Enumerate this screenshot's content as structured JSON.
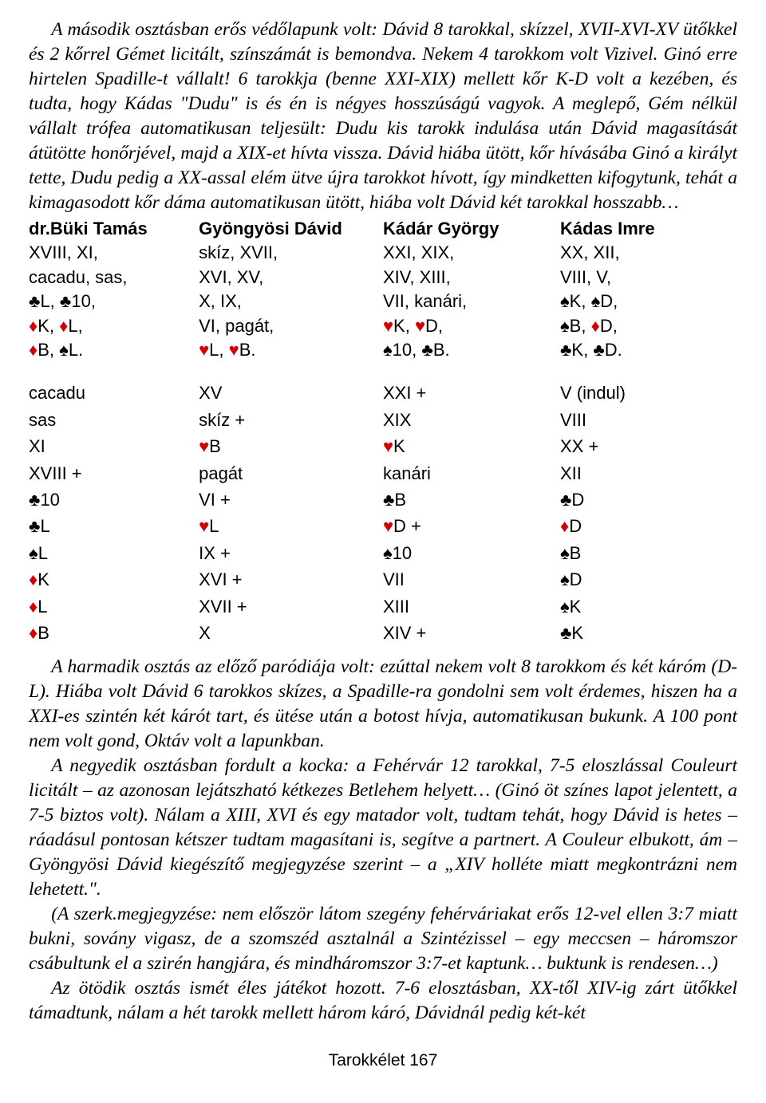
{
  "para1": "A második osztásban erős védőlapunk volt: Dávid 8 tarokkal, skízzel, XVII-XVI-XV ütőkkel és 2 kőrrel Gémet licitált, színszámát is bemondva. Nekem 4 tarokkom volt Vizivel. Ginó erre hirtelen Spadille-t vállalt! 6 tarokkja (benne XXI-XIX) mellett kőr K-D volt a kezében, és tudta, hogy Kádas \"Dudu\" is és én is négyes hosszúságú vagyok. A meglepő, Gém nélkül vállalt trófea automatikusan teljesült: Dudu kis tarokk indulása után Dávid magasítását átütötte honőrjével, majd a XIX-et hívta vissza. Dávid hiába ütött, kőr hívásába Ginó a királyt tette, Dudu pedig a XX-assal elém ütve újra tarokkot hívott, így mindketten kifogytunk, tehát a kimagasodott kőr dáma automatikusan ütött, hiába volt Dávid két tarokkal hosszabb…",
  "players": [
    "dr.Büki Tamás",
    "Gyöngyösi Dávid",
    "Kádár György",
    "Kádas Imre"
  ],
  "hands": [
    [
      "XVIII, XI,",
      "skíz, XVII,",
      "XXI, XIX,",
      "XX, XII,"
    ],
    [
      "cacadu, sas,",
      "XVI, XV,",
      "XIV, XIII,",
      "VIII, V,"
    ]
  ],
  "hands_sym": [
    [
      {
        "pre": "",
        "sym": "♣",
        "red": false,
        "mid": "L, ",
        "sym2": "♣",
        "red2": false,
        "post": "10,"
      },
      {
        "pre": "X, IX,",
        "sym": "",
        "mid": "",
        "sym2": "",
        "post": ""
      },
      {
        "pre": "VII, kanári,",
        "sym": "",
        "mid": "",
        "sym2": "",
        "post": ""
      },
      {
        "pre": "",
        "sym": "♠",
        "red": false,
        "mid": "K, ",
        "sym2": "♠",
        "red2": false,
        "post": "D,"
      }
    ],
    [
      {
        "pre": "",
        "sym": "♦",
        "red": true,
        "mid": "K, ",
        "sym2": "♦",
        "red2": true,
        "post": "L,"
      },
      {
        "pre": "VI, pagát,",
        "sym": "",
        "mid": "",
        "sym2": "",
        "post": ""
      },
      {
        "pre": "",
        "sym": "♥",
        "red": true,
        "mid": "K, ",
        "sym2": "♥",
        "red2": true,
        "post": "D,"
      },
      {
        "pre": "",
        "sym": "♠",
        "red": false,
        "mid": "B, ",
        "sym2": "♦",
        "red2": true,
        "post": "D,"
      }
    ],
    [
      {
        "pre": "",
        "sym": "♦",
        "red": true,
        "mid": "B, ",
        "sym2": "♠",
        "red2": false,
        "post": "L."
      },
      {
        "pre": "",
        "sym": "♥",
        "red": true,
        "mid": "L, ",
        "sym2": "♥",
        "red2": true,
        "post": "B."
      },
      {
        "pre": "",
        "sym": "♠",
        "red": false,
        "mid": "10, ",
        "sym2": "♣",
        "red2": false,
        "post": "B."
      },
      {
        "pre": "",
        "sym": "♣",
        "red": false,
        "mid": "K, ",
        "sym2": "♣",
        "red2": false,
        "post": "D."
      }
    ]
  ],
  "tricks": [
    [
      {
        "t": "cacadu"
      },
      {
        "t": "XV"
      },
      {
        "t": "XXI +"
      },
      {
        "t": "V (indul)"
      }
    ],
    [
      {
        "t": "sas"
      },
      {
        "t": "skíz +"
      },
      {
        "t": "XIX"
      },
      {
        "t": "VIII"
      }
    ],
    [
      {
        "t": "XI"
      },
      {
        "s": "♥",
        "r": true,
        "t": "B"
      },
      {
        "s": "♥",
        "r": true,
        "t": "K"
      },
      {
        "t": "XX +"
      }
    ],
    [
      {
        "t": "XVIII +"
      },
      {
        "t": "pagát"
      },
      {
        "t": "kanári"
      },
      {
        "t": "XII"
      }
    ],
    [
      {
        "s": "♣",
        "r": false,
        "t": "10"
      },
      {
        "t": "VI +"
      },
      {
        "s": "♣",
        "r": false,
        "t": "B"
      },
      {
        "s": "♣",
        "r": false,
        "t": "D"
      }
    ],
    [
      {
        "s": "♣",
        "r": false,
        "t": "L"
      },
      {
        "s": "♥",
        "r": true,
        "t": "L"
      },
      {
        "s": "♥",
        "r": true,
        "t": "D +"
      },
      {
        "s": "♦",
        "r": true,
        "t": "D"
      }
    ],
    [
      {
        "s": "♠",
        "r": false,
        "t": "L"
      },
      {
        "t": "IX +"
      },
      {
        "s": "♠",
        "r": false,
        "t": "10"
      },
      {
        "s": "♠",
        "r": false,
        "t": "B"
      }
    ],
    [
      {
        "s": "♦",
        "r": true,
        "t": "K"
      },
      {
        "t": "XVI +"
      },
      {
        "t": "VII"
      },
      {
        "s": "♠",
        "r": false,
        "t": "D"
      }
    ],
    [
      {
        "s": "♦",
        "r": true,
        "t": "L"
      },
      {
        "t": "XVII +"
      },
      {
        "t": "XIII"
      },
      {
        "s": "♠",
        "r": false,
        "t": "K"
      }
    ],
    [
      {
        "s": "♦",
        "r": true,
        "t": "B"
      },
      {
        "t": "X"
      },
      {
        "t": "XIV +"
      },
      {
        "s": "♣",
        "r": false,
        "t": "K"
      }
    ]
  ],
  "para2": "A harmadik osztás az előző paródiája volt: ezúttal nekem volt 8 tarokkom és két káróm (D-L). Hiába volt Dávid 6 tarokkos skízes, a Spadille-ra gondolni sem volt érdemes, hiszen ha a XXI-es szintén két kárót tart, és ütése után a botost hívja, automatikusan bukunk. A 100 pont nem volt gond, Oktáv volt a lapunkban.",
  "para3": "A negyedik osztásban fordult a kocka: a Fehérvár 12 tarokkal, 7-5 eloszlással Couleurt licitált – az azonosan lejátszható kétkezes Betlehem helyett… (Ginó öt színes lapot jelentett, a 7-5 biztos volt). Nálam a XIII, XVI és egy matador volt, tudtam tehát, hogy Dávid is hetes – ráadásul pontosan kétszer tudtam magasítani is, segítve a partnert. A Couleur elbukott, ám – Gyöngyösi Dávid kiegészítő megjegyzése szerint – a „XIV holléte miatt megkontrázni nem lehetett.\".",
  "para4": "(A szerk.megjegyzése: nem először látom szegény fehérváriakat erős 12-vel ellen 3:7 miatt bukni, sovány vigasz, de a szomszéd asztalnál a Szintézissel – egy meccsen – háromszor csábultunk el a szirén hangjára, és mindháromszor 3:7-et kaptunk… buktunk is rendesen…)",
  "para5": "Az ötödik osztás ismét éles játékot hozott. 7-6 elosztásban, XX-től XIV-ig zárt ütőkkel támadtunk, nálam a hét tarokk mellett három káró, Dávidnál pedig két-két",
  "footer": "Tarokkélet 167"
}
